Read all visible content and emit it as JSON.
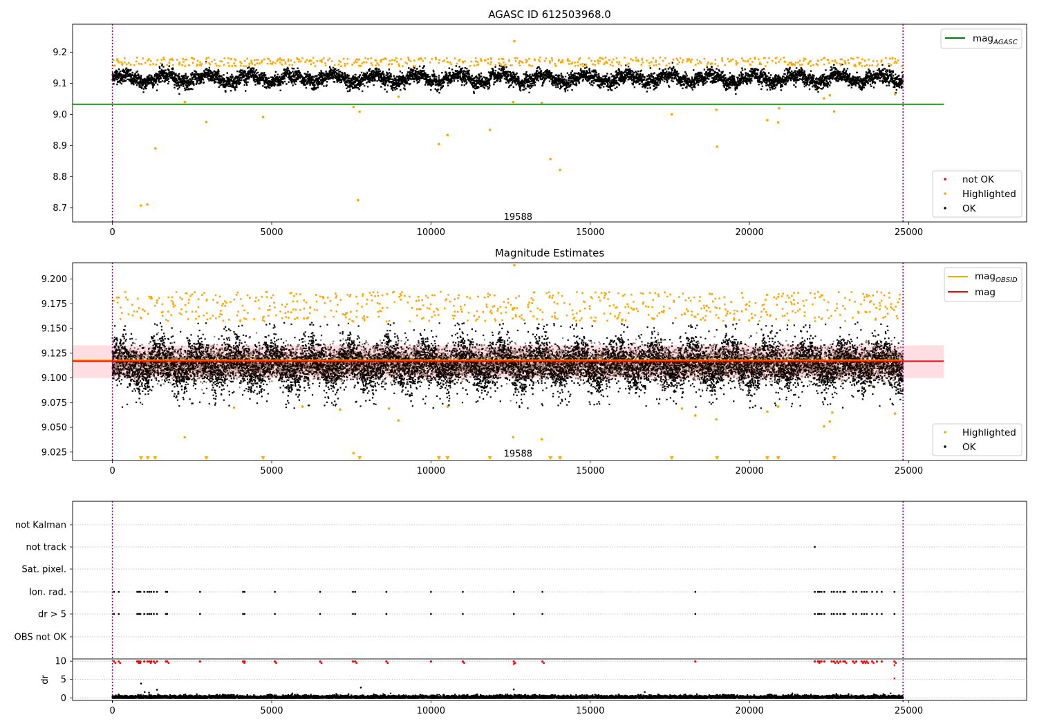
{
  "chart_data": [
    {
      "type": "scatter",
      "title": "AGASC ID 612503968.0",
      "x_ticks": [
        0,
        5000,
        10000,
        15000,
        20000,
        25000
      ],
      "y_ticks": [
        "8.7",
        "8.8",
        "8.9",
        "9.0",
        "9.1",
        "9.2"
      ],
      "xlim": [
        -1250,
        28700
      ],
      "ylim": [
        8.655,
        9.29
      ],
      "vlines": [
        0,
        24820
      ],
      "hlines": [
        {
          "name": "mag_AGASC",
          "value": 9.033,
          "color": "#008000",
          "xmax": 26100
        }
      ],
      "annotation": {
        "text": "19588",
        "x": 12300,
        "y": 8.673
      },
      "ok_band": {
        "center": 9.118,
        "spread": 0.016
      },
      "highlighted_points": [
        [
          890,
          8.708
        ],
        [
          1095,
          8.711
        ],
        [
          1350,
          8.891
        ],
        [
          2270,
          9.04
        ],
        [
          2950,
          8.976
        ],
        [
          4730,
          8.992
        ],
        [
          7570,
          9.024
        ],
        [
          7710,
          8.725
        ],
        [
          7760,
          9.009
        ],
        [
          8980,
          9.057
        ],
        [
          10250,
          8.905
        ],
        [
          10520,
          8.934
        ],
        [
          11850,
          8.951
        ],
        [
          12580,
          9.04
        ],
        [
          12620,
          9.236
        ],
        [
          13480,
          9.037
        ],
        [
          13750,
          8.857
        ],
        [
          14050,
          8.822
        ],
        [
          17560,
          9.001
        ],
        [
          18960,
          9.015
        ],
        [
          18980,
          8.897
        ],
        [
          20560,
          8.982
        ],
        [
          20900,
          8.975
        ],
        [
          20930,
          9.02
        ],
        [
          22340,
          9.052
        ],
        [
          22520,
          9.062
        ],
        [
          22660,
          9.01
        ],
        [
          24570,
          9.065
        ]
      ],
      "legend": {
        "lines": [
          {
            "label": "mag",
            "sub": "AGASC",
            "color": "#008000"
          }
        ],
        "points": [
          {
            "label": "not OK",
            "color": "#ff0000"
          },
          {
            "label": "Highlighted",
            "color": "#ffa500"
          },
          {
            "label": "OK",
            "color": "#000000"
          }
        ]
      }
    },
    {
      "type": "scatter",
      "title": "Magnitude Estimates",
      "x_ticks": [
        0,
        5000,
        10000,
        15000,
        20000,
        25000
      ],
      "y_ticks": [
        "9.025",
        "9.050",
        "9.075",
        "9.100",
        "9.125",
        "9.150",
        "9.175",
        "9.200"
      ],
      "xlim": [
        -1250,
        28700
      ],
      "ylim": [
        9.0165,
        9.2165
      ],
      "vlines": [
        0,
        24820
      ],
      "hlines": [
        {
          "name": "mag_OBSID",
          "value": 9.118,
          "color": "#ffa500",
          "xmax": 24820
        },
        {
          "name": "mag",
          "value": 9.117,
          "color": "#ff0000",
          "xmax": 26100
        }
      ],
      "band": {
        "from": 9.1,
        "to": 9.133,
        "color": "#ffb6c1"
      },
      "annotation": {
        "text": "19588",
        "x": 12300,
        "y": 9.023
      },
      "highlighted_points": [
        [
          2270,
          9.04
        ],
        [
          3820,
          9.07
        ],
        [
          5970,
          9.071
        ],
        [
          7150,
          9.068
        ],
        [
          7570,
          9.024
        ],
        [
          8680,
          9.069
        ],
        [
          8980,
          9.057
        ],
        [
          10520,
          9.071
        ],
        [
          12580,
          9.04
        ],
        [
          13480,
          9.038
        ],
        [
          17880,
          9.069
        ],
        [
          18300,
          9.062
        ],
        [
          18960,
          9.058
        ],
        [
          20560,
          9.066
        ],
        [
          20900,
          9.071
        ],
        [
          22340,
          9.051
        ],
        [
          22520,
          9.056
        ],
        [
          22600,
          9.065
        ],
        [
          24570,
          9.064
        ],
        [
          12620,
          9.214
        ]
      ],
      "offscale_low": [
        900,
        1110,
        1340,
        2950,
        4730,
        7760,
        10250,
        10520,
        11850,
        13750,
        14050,
        17560,
        18980,
        20560,
        20900,
        22660
      ],
      "legend": {
        "lines": [
          {
            "label": "mag",
            "sub": "OBSID",
            "color": "#ffa500"
          },
          {
            "label": "mag",
            "sub": "",
            "color": "#ff0000"
          }
        ],
        "points": [
          {
            "label": "Highlighted",
            "color": "#ffa500"
          },
          {
            "label": "OK",
            "color": "#000000"
          }
        ]
      }
    },
    {
      "type": "scatter",
      "title": "",
      "x_ticks": [
        0,
        5000,
        10000,
        15000,
        20000,
        25000
      ],
      "categories": [
        "not Kalman",
        "not track",
        "Sat. pixel.",
        "Ion. rad.",
        "dr > 5",
        "OBS not OK"
      ],
      "xlim": [
        -1250,
        28700
      ],
      "vlines": [
        0,
        24820
      ],
      "flag_series": {
        "not track": [
          22050
        ],
        "Ion. rad.": [
          50,
          200,
          780,
          830,
          880,
          1000,
          1100,
          1160,
          1220,
          1300,
          1400,
          1680,
          1720,
          2750,
          4100,
          4150,
          5100,
          6520,
          7550,
          7620,
          8600,
          10000,
          11000,
          12600,
          13500,
          18300,
          22050,
          22150,
          22200,
          22260,
          22350,
          22580,
          22650,
          22750,
          22850,
          22950,
          23000,
          23250,
          23350,
          23520,
          23600,
          23680,
          23850,
          24000,
          24150,
          24550
        ],
        "dr > 5": [
          50,
          200,
          780,
          830,
          880,
          1000,
          1100,
          1160,
          1220,
          1300,
          1400,
          1680,
          1720,
          2750,
          4100,
          4150,
          5100,
          6520,
          7550,
          7620,
          8600,
          10000,
          11000,
          12600,
          13500,
          18300,
          22050,
          22150,
          22200,
          22260,
          22350,
          22580,
          22650,
          22750,
          22850,
          22950,
          23000,
          23250,
          23350,
          23520,
          23600,
          23680,
          23850,
          24000,
          24150,
          24550
        ]
      }
    },
    {
      "type": "scatter",
      "ylabel": "dr",
      "x_ticks": [
        0,
        5000,
        10000,
        15000,
        20000,
        25000
      ],
      "x_tick_labels": [
        "0",
        "5000",
        "10000",
        "15000",
        "20000",
        "25000"
      ],
      "y_ticks": [
        "0",
        "5",
        "10"
      ],
      "xlim": [
        -1250,
        28700
      ],
      "ylim": [
        -0.7,
        10.6
      ],
      "vlines": [
        0,
        24820
      ],
      "red_points_x": [
        50,
        200,
        780,
        830,
        880,
        1000,
        1100,
        1160,
        1220,
        1300,
        1400,
        1680,
        1720,
        2750,
        4100,
        4150,
        5100,
        6520,
        7550,
        7620,
        8600,
        10000,
        11000,
        12600,
        13500,
        18300,
        22050,
        22150,
        22200,
        22260,
        22350,
        22580,
        22650,
        22750,
        22850,
        22950,
        23000,
        23250,
        23350,
        23520,
        23600,
        23680,
        23850,
        24000,
        24150,
        24550
      ],
      "outliers": [
        [
          900,
          3.9
        ],
        [
          1150,
          1.4
        ],
        [
          1400,
          2.2
        ],
        [
          7800,
          2.8
        ],
        [
          12600,
          2.3
        ],
        [
          24550,
          5.3
        ],
        [
          12600,
          9.2
        ],
        [
          24550,
          8.9
        ]
      ]
    }
  ]
}
